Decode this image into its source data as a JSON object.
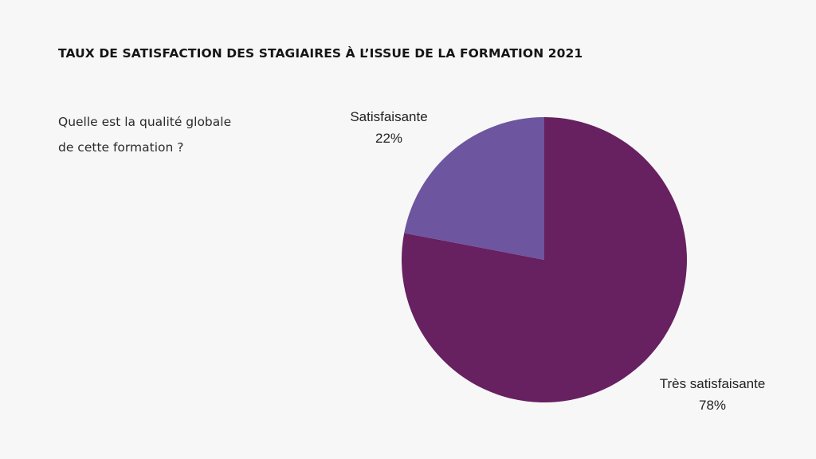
{
  "header": {
    "title": "TAUX DE SATISFACTION DES STAGIAIRES À L’ISSUE DE LA FORMATION 2021"
  },
  "question": {
    "line1": "Quelle est la qualité globale",
    "line2": "de cette formation ?"
  },
  "chart_data": {
    "type": "pie",
    "title": "",
    "slices": [
      {
        "label": "Très satisfaisante",
        "value": 78,
        "value_label": "78%",
        "color": "#672060"
      },
      {
        "label": "Satisfaisante",
        "value": 22,
        "value_label": "22%",
        "color": "#6d559f"
      }
    ],
    "start_angle_deg": 0,
    "direction": "clockwise",
    "legend": "none"
  }
}
